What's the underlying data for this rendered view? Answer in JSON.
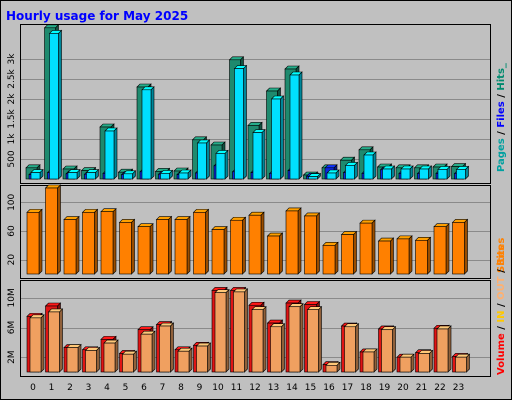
{
  "chart_data": {
    "title": "Hourly usage for May 2025",
    "type": "bar",
    "categories": [
      "0",
      "1",
      "2",
      "3",
      "4",
      "5",
      "6",
      "7",
      "8",
      "9",
      "10",
      "11",
      "12",
      "13",
      "14",
      "15",
      "16",
      "17",
      "18",
      "19",
      "20",
      "21",
      "22",
      "23"
    ],
    "panels": [
      {
        "name": "top",
        "ylim": [
          0,
          3800
        ],
        "ticks": [
          {
            "value": 500,
            "label": "500"
          },
          {
            "value": 1000,
            "label": "1k"
          },
          {
            "value": 1500,
            "label": "1.5k"
          },
          {
            "value": 2000,
            "label": "2k"
          },
          {
            "value": 2500,
            "label": "2.5k"
          },
          {
            "value": 3000,
            "label": "3k"
          }
        ],
        "legend": [
          {
            "text": "Pages",
            "color": "#00a0a0"
          },
          {
            "text": " / ",
            "color": "#000000"
          },
          {
            "text": "Files",
            "color": "#0000ff"
          },
          {
            "text": " / ",
            "color": "#000000"
          },
          {
            "text": "Hits_",
            "color": "#008a6e"
          }
        ],
        "series": [
          {
            "name": "Hits",
            "color": "#1e8a6e",
            "values": [
              280,
              3780,
              250,
              210,
              1300,
              170,
              2300,
              190,
              200,
              980,
              850,
              2980,
              1340,
              2200,
              2750,
              100,
              280,
              470,
              730,
              300,
              280,
              280,
              300,
              310
            ]
          },
          {
            "name": "Files",
            "color": "#0a28e0",
            "values": [
              110,
              160,
              130,
              120,
              140,
              110,
              180,
              120,
              110,
              150,
              330,
              180,
              160,
              140,
              210,
              70,
              280,
              160,
              140,
              230,
              140,
              140,
              140,
              140
            ]
          },
          {
            "name": "Pages",
            "color": "#00e0ff",
            "values": [
              160,
              3640,
              160,
              160,
              1200,
              130,
              2230,
              140,
              150,
              900,
              640,
              2760,
              1160,
              2000,
              2600,
              60,
              150,
              340,
              600,
              250,
              250,
              250,
              240,
              240
            ]
          }
        ]
      },
      {
        "name": "middle",
        "ylim": [
          0,
          120
        ],
        "ticks": [
          {
            "value": 20,
            "label": "20"
          },
          {
            "value": 60,
            "label": "60"
          },
          {
            "value": 100,
            "label": "100"
          }
        ],
        "legend": [
          {
            "text": "Sites",
            "color": "#ff8000"
          }
        ],
        "series": [
          {
            "name": "Sites",
            "color": "#ff8000",
            "values": [
              86,
              120,
              76,
              86,
              87,
              72,
              66,
              76,
              76,
              86,
              62,
              75,
              82,
              53,
              88,
              81,
              40,
              55,
              71,
              46,
              49,
              47,
              66,
              72
            ]
          }
        ]
      },
      {
        "name": "bottom",
        "ylim": [
          0,
          12000000
        ],
        "ticks": [
          {
            "value": 2000000,
            "label": "2M"
          },
          {
            "value": 6000000,
            "label": "6M"
          },
          {
            "value": 10000000,
            "label": "10M"
          }
        ],
        "legend": [
          {
            "text": "Volume",
            "color": "#ff0000"
          },
          {
            "text": " / ",
            "color": "#000000"
          },
          {
            "text": "IN",
            "color": "#ffc800"
          },
          {
            "text": " / ",
            "color": "#000000"
          },
          {
            "text": "OUT",
            "color": "#ffb070"
          },
          {
            "text": " / ",
            "color": "#000000"
          },
          {
            "text": "Sites",
            "color": "#ff8000"
          }
        ],
        "series": [
          {
            "name": "Volume",
            "color": "#e01414",
            "values": [
              7500000,
              8900000,
              3300000,
              3000000,
              4400000,
              2500000,
              5700000,
              6400000,
              3000000,
              3600000,
              11000000,
              11000000,
              9000000,
              6600000,
              9300000,
              9100000,
              1000000,
              6200000,
              2700000,
              5800000,
              2000000,
              2600000,
              5900000,
              2100000
            ]
          },
          {
            "name": "OUT",
            "color": "#f0a060",
            "values": [
              7300000,
              8100000,
              3300000,
              2900000,
              3900000,
              2400000,
              5100000,
              6200000,
              2800000,
              3500000,
              10700000,
              10800000,
              8400000,
              6100000,
              8800000,
              8400000,
              900000,
              6100000,
              2700000,
              5700000,
              2000000,
              2500000,
              5800000,
              2000000
            ]
          }
        ]
      }
    ]
  }
}
